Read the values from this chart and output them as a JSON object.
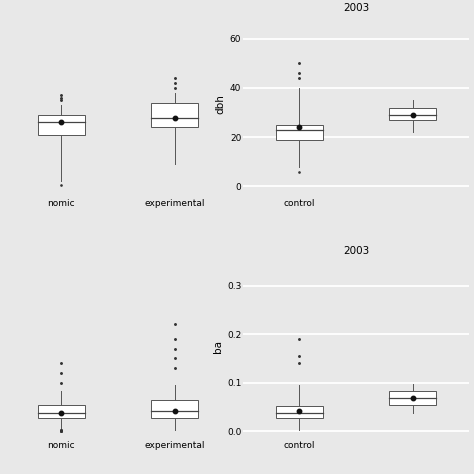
{
  "fig_width": 4.74,
  "fig_height": 4.74,
  "dpi": 100,
  "background_color": "#e8e8e8",
  "grid_color": "#ffffff",
  "box_face_color": "#ffffff",
  "box_edge_color": "#555555",
  "median_color": "#444444",
  "mean_color": "#111111",
  "whisker_color": "#555555",
  "outlier_color": "#333333",
  "panels": [
    {
      "row": 0,
      "col": 0,
      "title": "",
      "ylabel": "",
      "ylim": [
        -3,
        70
      ],
      "yticks": [],
      "boxes": [
        {
          "label": "nomic",
          "q1": 21,
          "median": 26,
          "q3": 29,
          "mean": 26,
          "whisker_low": 2,
          "whisker_high": 33,
          "outliers_high": [
            35,
            36,
            37
          ],
          "outliers_low": [
            0.5
          ]
        },
        {
          "label": "experimental",
          "q1": 24,
          "median": 28,
          "q3": 34,
          "mean": 28,
          "whisker_low": 9,
          "whisker_high": 38,
          "outliers_high": [
            40,
            42,
            44
          ],
          "outliers_low": []
        }
      ]
    },
    {
      "row": 0,
      "col": 1,
      "title": "2003",
      "ylabel": "dbh",
      "ylim": [
        -3,
        70
      ],
      "yticks": [
        0,
        20,
        40,
        60
      ],
      "boxes": [
        {
          "label": "control",
          "q1": 19,
          "median": 23,
          "q3": 25,
          "mean": 24,
          "whisker_low": 8,
          "whisker_high": 40,
          "outliers_high": [
            44,
            46,
            50
          ],
          "outliers_low": [
            6
          ]
        },
        {
          "label": "",
          "q1": 27,
          "median": 29,
          "q3": 32,
          "mean": 29,
          "whisker_low": 22,
          "whisker_high": 35,
          "outliers_high": [],
          "outliers_low": []
        }
      ]
    },
    {
      "row": 1,
      "col": 0,
      "title": "",
      "ylabel": "",
      "ylim": [
        -0.01,
        0.36
      ],
      "yticks": [],
      "boxes": [
        {
          "label": "nomic",
          "q1": 0.028,
          "median": 0.038,
          "q3": 0.055,
          "mean": 0.038,
          "whisker_low": 0.002,
          "whisker_high": 0.082,
          "outliers_high": [
            0.1,
            0.12,
            0.14
          ],
          "outliers_low": [
            0.0005,
            0.001,
            0.001,
            0.001,
            0.002,
            0.002,
            0.002
          ]
        },
        {
          "label": "experimental",
          "q1": 0.028,
          "median": 0.042,
          "q3": 0.065,
          "mean": 0.042,
          "whisker_low": 0.003,
          "whisker_high": 0.095,
          "outliers_high": [
            0.13,
            0.15,
            0.17,
            0.19,
            0.22
          ],
          "outliers_low": []
        }
      ]
    },
    {
      "row": 1,
      "col": 1,
      "title": "2003",
      "ylabel": "ba",
      "ylim": [
        -0.01,
        0.36
      ],
      "yticks": [
        0.0,
        0.1,
        0.2,
        0.3
      ],
      "boxes": [
        {
          "label": "control",
          "q1": 0.028,
          "median": 0.038,
          "q3": 0.052,
          "mean": 0.042,
          "whisker_low": 0.003,
          "whisker_high": 0.095,
          "outliers_high": [
            0.14,
            0.155,
            0.19
          ],
          "outliers_low": []
        },
        {
          "label": "",
          "q1": 0.055,
          "median": 0.068,
          "q3": 0.083,
          "mean": 0.068,
          "whisker_low": 0.038,
          "whisker_high": 0.098,
          "outliers_high": [],
          "outliers_low": []
        }
      ]
    }
  ]
}
